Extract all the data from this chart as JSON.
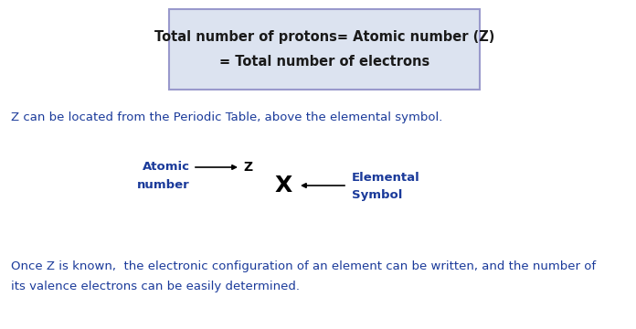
{
  "bg_color": "#ffffff",
  "box_bg_color": "#dce3f0",
  "box_edge_color": "#9999cc",
  "box_line1": "Total number of protons= Atomic number (Z)",
  "box_line2": "= Total number of electrons",
  "text_color_dark": "#1a1a1a",
  "text_color_blue": "#1a3a9a",
  "text_color_mid": "#2a4aaa",
  "line2_text": "Z can be located from the Periodic Table, above the elemental symbol.",
  "atomic_label": "Atomic",
  "number_label": "number",
  "z_label": "Z",
  "x_label": "X",
  "elemental_label": "Elemental",
  "symbol_label": "Symbol",
  "bottom_line1": "Once Z is known,  the electronic configuration of an element can be written, and the number of",
  "bottom_line2": "its valence electrons can be easily determined.",
  "font_size_box": 10.5,
  "font_size_body": 9.5,
  "font_size_atomic": 9.5,
  "font_size_x": 18,
  "font_size_z": 10,
  "font_size_bottom": 9.5
}
